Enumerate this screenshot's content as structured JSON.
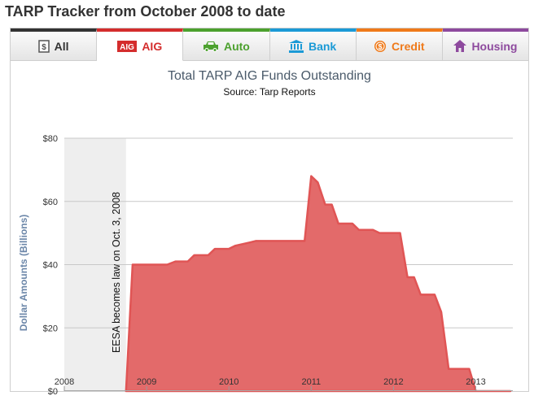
{
  "page": {
    "title": "TARP Tracker from October 2008 to date"
  },
  "tabs": [
    {
      "label": "All",
      "icon": "document-dollar-icon",
      "color": "#333333",
      "active": false
    },
    {
      "label": "AIG",
      "icon": "aig-logo-icon",
      "icon_text": "AIG",
      "color": "#d42d2d",
      "active": true
    },
    {
      "label": "Auto",
      "icon": "car-icon",
      "color": "#4ca12e",
      "active": false
    },
    {
      "label": "Bank",
      "icon": "bank-icon",
      "color": "#1b9ad6",
      "active": false
    },
    {
      "label": "Credit",
      "icon": "dollar-coin-icon",
      "color": "#ef7a1a",
      "active": false
    },
    {
      "label": "Housing",
      "icon": "house-icon",
      "color": "#8e4a9e",
      "active": false
    }
  ],
  "chart_data": {
    "type": "area",
    "title": "Total TARP AIG Funds Outstanding",
    "subtitle": "Source:  Tarp Reports",
    "xlabel": "",
    "ylabel": "Dollar Amounts (Billions)",
    "xlim": [
      2008,
      2013.45
    ],
    "ylim": [
      0,
      80
    ],
    "x_ticks": [
      2008,
      2009,
      2010,
      2011,
      2012,
      2013
    ],
    "x_tick_labels": [
      "2008",
      "2009",
      "2010",
      "2011",
      "2012",
      "2013"
    ],
    "y_ticks": [
      0,
      20,
      40,
      60,
      80
    ],
    "y_tick_labels": [
      "$0",
      "$20",
      "$40",
      "$60",
      "$80"
    ],
    "grid": true,
    "shaded_band": {
      "from": 2008,
      "to": 2008.75
    },
    "annotation": {
      "text": "EESA becomes law on Oct. 3, 2008",
      "x": 2008.75
    },
    "series": [
      {
        "name": "AIG funds outstanding",
        "color": "#e05555",
        "fill": "#e36a6a",
        "x": [
          2008.75,
          2008.83,
          2009.25,
          2009.35,
          2009.5,
          2009.58,
          2009.75,
          2009.83,
          2010.0,
          2010.08,
          2010.25,
          2010.33,
          2010.5,
          2010.92,
          2011.0,
          2011.08,
          2011.17,
          2011.25,
          2011.33,
          2011.5,
          2011.58,
          2011.75,
          2011.83,
          2012.08,
          2012.17,
          2012.25,
          2012.33,
          2012.5,
          2012.58,
          2012.67,
          2012.75,
          2012.92,
          2013.0,
          2013.42
        ],
        "values": [
          0,
          40,
          40,
          41,
          41,
          43,
          43,
          45,
          45,
          46,
          47,
          47.5,
          47.5,
          47.5,
          68,
          66,
          59,
          59,
          53,
          53,
          51,
          51,
          50,
          50,
          36,
          36,
          30.5,
          30.5,
          25,
          7,
          7,
          7,
          0,
          0
        ]
      }
    ]
  }
}
